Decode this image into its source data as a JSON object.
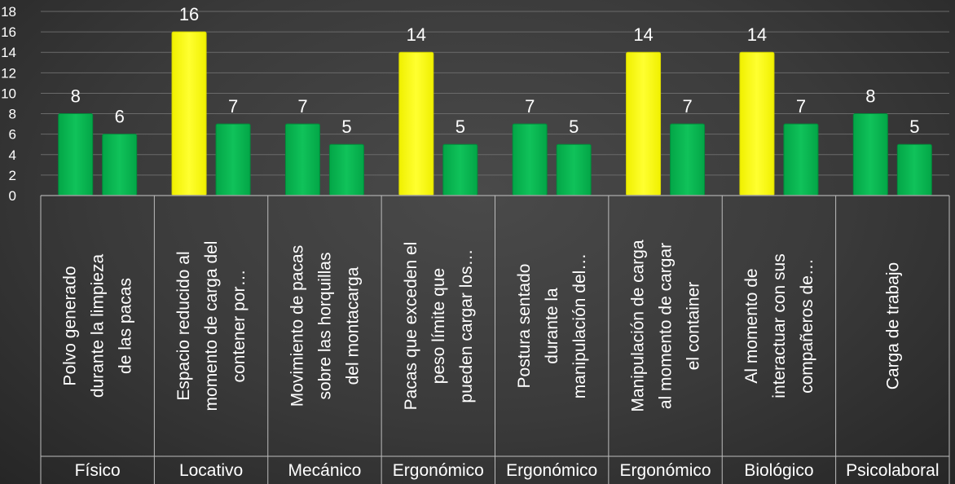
{
  "chart_data": {
    "type": "bar",
    "title": "",
    "xlabel": "",
    "ylabel": "",
    "ylim": [
      0,
      18
    ],
    "yticks": [
      0,
      2,
      4,
      6,
      8,
      10,
      12,
      14,
      16,
      18
    ],
    "grid": true,
    "legend": "none",
    "colors": {
      "green": "#00b050",
      "yellow": "#ffff00"
    },
    "groups": [
      {
        "label": "Físico",
        "category": "Polvo generado durante la limpieza de las pacas",
        "bars": [
          {
            "value": 8,
            "color": "green"
          },
          {
            "value": 6,
            "color": "green"
          }
        ]
      },
      {
        "label": "Locativo",
        "category": "Espacio reducido al momento de carga del contener por…",
        "bars": [
          {
            "value": 16,
            "color": "yellow"
          },
          {
            "value": 7,
            "color": "green"
          }
        ]
      },
      {
        "label": "Mecánico",
        "category": "Movimiento de pacas sobre las horquillas del montacarga",
        "bars": [
          {
            "value": 7,
            "color": "green"
          },
          {
            "value": 5,
            "color": "green"
          }
        ]
      },
      {
        "label": "Ergonómico",
        "category": "Pacas que exceden el peso límite que pueden cargar los…",
        "bars": [
          {
            "value": 14,
            "color": "yellow"
          },
          {
            "value": 5,
            "color": "green"
          }
        ]
      },
      {
        "label": "Ergonómico",
        "category": "Postura sentado durante la manipulación del…",
        "bars": [
          {
            "value": 7,
            "color": "green"
          },
          {
            "value": 5,
            "color": "green"
          }
        ]
      },
      {
        "label": "Ergonómico",
        "category": "Manipulación de carga al momento de cargar el container",
        "bars": [
          {
            "value": 14,
            "color": "yellow"
          },
          {
            "value": 7,
            "color": "green"
          }
        ]
      },
      {
        "label": "Biológico",
        "category": "Al momento de interactuar con sus compañeros de…",
        "bars": [
          {
            "value": 14,
            "color": "yellow"
          },
          {
            "value": 7,
            "color": "green"
          }
        ]
      },
      {
        "label": "Psicolaboral",
        "category": "Carga de trabajo",
        "bars": [
          {
            "value": 8,
            "color": "green"
          },
          {
            "value": 5,
            "color": "green"
          }
        ]
      }
    ]
  }
}
